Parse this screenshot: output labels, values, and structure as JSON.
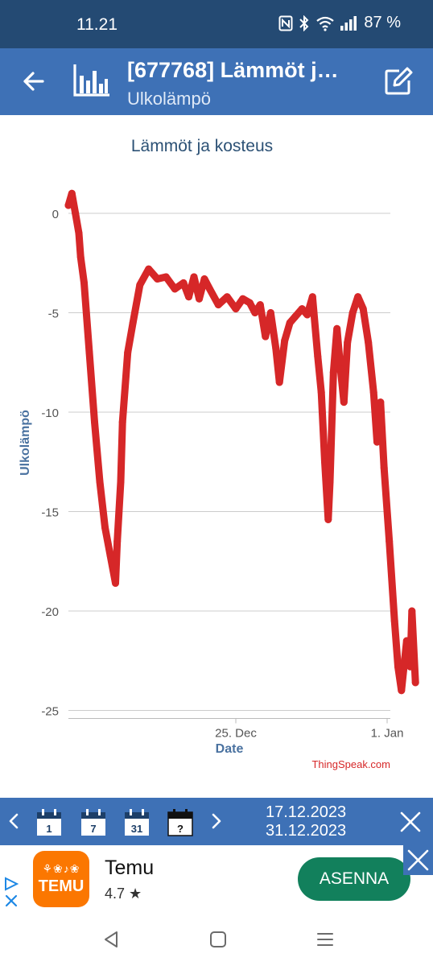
{
  "status_bar": {
    "time": "11.21",
    "battery": "87 %",
    "icons": [
      "nfc-icon",
      "bluetooth-icon",
      "wifi-icon",
      "signal-icon"
    ]
  },
  "app_bar": {
    "title": "[677768] Lämmöt j…",
    "subtitle": "Ulkolämpö",
    "icons": [
      "back-icon",
      "chart-icon",
      "edit-icon"
    ]
  },
  "chart_data": {
    "type": "line",
    "title": "Lämmöt ja kosteus",
    "xlabel": "Date",
    "ylabel": "Ulkolämpö",
    "credit": "ThingSpeak.com",
    "x_ticks": [
      "25. Dec",
      "1. Jan"
    ],
    "y_ticks": [
      0,
      -5,
      -10,
      -15,
      -20,
      -25
    ],
    "xlim": [
      "2023-12-17",
      "2024-01-01"
    ],
    "ylim": [
      -25,
      1
    ],
    "grid": true,
    "series": [
      {
        "color": "#d62728",
        "points": [
          [
            "2023-12-17 00:00",
            0.4
          ],
          [
            "2023-12-17 04:00",
            1.0
          ],
          [
            "2023-12-17 08:00",
            0.0
          ],
          [
            "2023-12-17 12:00",
            -1.0
          ],
          [
            "2023-12-17 14:00",
            -2.2
          ],
          [
            "2023-12-17 18:00",
            -3.5
          ],
          [
            "2023-12-18 00:00",
            -7.0
          ],
          [
            "2023-12-18 06:00",
            -10.5
          ],
          [
            "2023-12-18 12:00",
            -13.5
          ],
          [
            "2023-12-18 18:00",
            -15.8
          ],
          [
            "2023-12-19 00:00",
            -17.2
          ],
          [
            "2023-12-19 06:00",
            -18.6
          ],
          [
            "2023-12-19 08:00",
            -16.5
          ],
          [
            "2023-12-19 12:00",
            -13.5
          ],
          [
            "2023-12-19 14:00",
            -10.5
          ],
          [
            "2023-12-19 20:00",
            -7.0
          ],
          [
            "2023-12-20 02:00",
            -5.5
          ],
          [
            "2023-12-20 10:00",
            -3.6
          ],
          [
            "2023-12-20 20:00",
            -2.8
          ],
          [
            "2023-12-21 06:00",
            -3.3
          ],
          [
            "2023-12-21 16:00",
            -3.2
          ],
          [
            "2023-12-22 02:00",
            -3.8
          ],
          [
            "2023-12-22 12:00",
            -3.5
          ],
          [
            "2023-12-22 18:00",
            -4.2
          ],
          [
            "2023-12-23 00:00",
            -3.2
          ],
          [
            "2023-12-23 06:00",
            -4.3
          ],
          [
            "2023-12-23 12:00",
            -3.3
          ],
          [
            "2023-12-23 18:00",
            -3.8
          ],
          [
            "2023-12-24 04:00",
            -4.6
          ],
          [
            "2023-12-24 14:00",
            -4.2
          ],
          [
            "2023-12-25 00:00",
            -4.8
          ],
          [
            "2023-12-25 08:00",
            -4.3
          ],
          [
            "2023-12-25 16:00",
            -4.5
          ],
          [
            "2023-12-25 22:00",
            -5.0
          ],
          [
            "2023-12-26 04:00",
            -4.6
          ],
          [
            "2023-12-26 10:00",
            -6.2
          ],
          [
            "2023-12-26 16:00",
            -5.0
          ],
          [
            "2023-12-26 22:00",
            -6.8
          ],
          [
            "2023-12-27 02:00",
            -8.5
          ],
          [
            "2023-12-27 08:00",
            -6.4
          ],
          [
            "2023-12-27 14:00",
            -5.5
          ],
          [
            "2023-12-27 20:00",
            -5.2
          ],
          [
            "2023-12-28 04:00",
            -4.8
          ],
          [
            "2023-12-28 10:00",
            -5.1
          ],
          [
            "2023-12-28 16:00",
            -4.2
          ],
          [
            "2023-12-28 22:00",
            -7.2
          ],
          [
            "2023-12-29 02:00",
            -9.0
          ],
          [
            "2023-12-29 06:00",
            -12.5
          ],
          [
            "2023-12-29 10:00",
            -15.4
          ],
          [
            "2023-12-29 12:00",
            -13.5
          ],
          [
            "2023-12-29 16:00",
            -8.0
          ],
          [
            "2023-12-29 20:00",
            -5.8
          ],
          [
            "2023-12-30 00:00",
            -7.8
          ],
          [
            "2023-12-30 04:00",
            -9.5
          ],
          [
            "2023-12-30 08:00",
            -6.5
          ],
          [
            "2023-12-30 14:00",
            -5.0
          ],
          [
            "2023-12-30 20:00",
            -4.2
          ],
          [
            "2023-12-31 02:00",
            -4.8
          ],
          [
            "2023-12-31 08:00",
            -6.5
          ],
          [
            "2023-12-31 14:00",
            -9.0
          ],
          [
            "2023-12-31 18:00",
            -11.5
          ],
          [
            "2023-12-31 20:00",
            -10.0
          ],
          [
            "2023-12-31 22:00",
            -9.5
          ],
          [
            "2024-01-01 02:00",
            -12.8
          ],
          [
            "2024-01-01 08:00",
            -16.5
          ],
          [
            "2024-01-01 14:00",
            -20.5
          ],
          [
            "2024-01-01 18:00",
            -22.8
          ],
          [
            "2024-01-01 22:00",
            -24.0
          ],
          [
            "2024-01-02 04:00",
            -21.5
          ],
          [
            "2024-01-02 08:00",
            -22.8
          ],
          [
            "2024-01-02 10:00",
            -20.0
          ],
          [
            "2024-01-02 14:00",
            -23.6
          ]
        ]
      }
    ]
  },
  "nav_bar": {
    "calendar_buttons": [
      "1",
      "7",
      "31",
      "?"
    ],
    "date_from": "17.12.2023",
    "date_to": "31.12.2023",
    "icons": [
      "prev-icon",
      "next-icon",
      "close-icon"
    ]
  },
  "ad": {
    "app_name": "Temu",
    "logo_text": "TEMU",
    "rating": "4.7 ★",
    "install_label": "ASENNA",
    "brand_color": "#fb7701",
    "button_color": "#12805c"
  },
  "system_nav": {
    "icons": [
      "back-nav-icon",
      "home-nav-icon",
      "recents-nav-icon"
    ]
  },
  "colors": {
    "status_bar": "#244a73",
    "app_bar": "#3e71b6",
    "line": "#d62728",
    "title_text": "#2c5175"
  }
}
